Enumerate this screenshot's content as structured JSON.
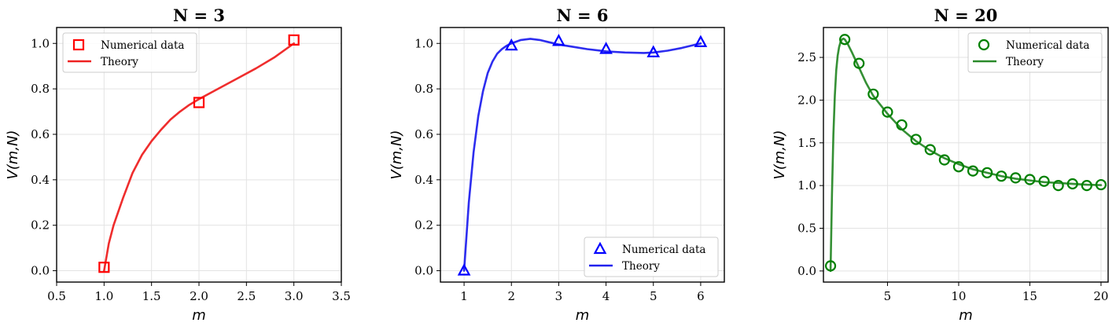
{
  "chart_data": [
    {
      "type": "line",
      "title": "N = 3",
      "xlabel": "m",
      "ylabel": "V(m,N)",
      "xlim": [
        0.5,
        3.5
      ],
      "ylim": [
        -0.05,
        1.07
      ],
      "xticks": [
        "0.5",
        "1.0",
        "1.5",
        "2.0",
        "2.5",
        "3.0",
        "3.5"
      ],
      "yticks": [
        "0.0",
        "0.2",
        "0.4",
        "0.6",
        "0.8",
        "1.0"
      ],
      "grid": true,
      "legend_position": "top-left",
      "color": "#ff0000",
      "theory_color": "#ee2222",
      "marker": "square",
      "series": [
        {
          "name": "Numerical data",
          "kind": "markers",
          "x": [
            1,
            2,
            3
          ],
          "y": [
            0.015,
            0.74,
            1.015
          ]
        },
        {
          "name": "Theory",
          "kind": "line",
          "x": [
            1.0,
            1.05,
            1.1,
            1.2,
            1.3,
            1.4,
            1.5,
            1.6,
            1.7,
            1.8,
            1.9,
            2.0,
            2.2,
            2.4,
            2.6,
            2.8,
            3.0
          ],
          "y": [
            0.0,
            0.12,
            0.2,
            0.32,
            0.43,
            0.51,
            0.57,
            0.62,
            0.665,
            0.7,
            0.73,
            0.755,
            0.8,
            0.845,
            0.89,
            0.94,
            1.0
          ]
        }
      ]
    },
    {
      "type": "line",
      "title": "N = 6",
      "xlabel": "m",
      "ylabel": "V(m,N)",
      "xlim": [
        0.5,
        6.5
      ],
      "ylim": [
        -0.05,
        1.07
      ],
      "xticks": [
        "1",
        "2",
        "3",
        "4",
        "5",
        "6"
      ],
      "yticks": [
        "0.0",
        "0.2",
        "0.4",
        "0.6",
        "0.8",
        "1.0"
      ],
      "grid": true,
      "legend_position": "bottom-right",
      "color": "#0000ff",
      "theory_color": "#2222ee",
      "marker": "triangle",
      "series": [
        {
          "name": "Numerical data",
          "kind": "markers",
          "x": [
            1,
            2,
            3,
            4,
            5,
            6
          ],
          "y": [
            0.0,
            0.99,
            1.01,
            0.975,
            0.96,
            1.005
          ]
        },
        {
          "name": "Theory",
          "kind": "line",
          "x": [
            1.0,
            1.1,
            1.2,
            1.3,
            1.4,
            1.5,
            1.6,
            1.7,
            1.8,
            1.9,
            2.0,
            2.2,
            2.4,
            2.6,
            2.8,
            3.0,
            3.3,
            3.6,
            4.0,
            4.4,
            4.8,
            5.0,
            5.3,
            5.6,
            6.0
          ],
          "y": [
            0.0,
            0.3,
            0.52,
            0.68,
            0.79,
            0.87,
            0.92,
            0.955,
            0.975,
            0.99,
            1.0,
            1.015,
            1.02,
            1.015,
            1.005,
            0.995,
            0.985,
            0.975,
            0.965,
            0.96,
            0.958,
            0.96,
            0.968,
            0.98,
            1.0
          ]
        }
      ]
    },
    {
      "type": "line",
      "title": "N = 20",
      "xlabel": "m",
      "ylabel": "V(m,N)",
      "xlim": [
        0.5,
        20.5
      ],
      "ylim": [
        -0.13,
        2.85
      ],
      "xticks": [
        "5",
        "10",
        "15",
        "20"
      ],
      "yticks": [
        "0.0",
        "0.5",
        "1.0",
        "1.5",
        "2.0",
        "2.5"
      ],
      "grid": true,
      "legend_position": "top-right",
      "color": "#008000",
      "theory_color": "#2a8a2a",
      "marker": "circle",
      "series": [
        {
          "name": "Numerical data",
          "kind": "markers",
          "x": [
            1,
            2,
            3,
            4,
            5,
            6,
            7,
            8,
            9,
            10,
            11,
            12,
            13,
            14,
            15,
            16,
            17,
            18,
            19,
            20
          ],
          "y": [
            0.06,
            2.71,
            2.43,
            2.07,
            1.86,
            1.71,
            1.54,
            1.42,
            1.3,
            1.22,
            1.17,
            1.15,
            1.11,
            1.09,
            1.07,
            1.05,
            1.0,
            1.02,
            1.0,
            1.01
          ]
        },
        {
          "name": "Theory",
          "kind": "line",
          "x": [
            1.0,
            1.1,
            1.2,
            1.3,
            1.4,
            1.5,
            1.6,
            1.7,
            1.8,
            1.9,
            2.0,
            2.2,
            2.5,
            3.0,
            3.5,
            4.0,
            5.0,
            6.0,
            7.0,
            8.0,
            9.0,
            10,
            11,
            12,
            13,
            14,
            15,
            16,
            17,
            18,
            19,
            20
          ],
          "y": [
            0.0,
            0.9,
            1.6,
            2.05,
            2.35,
            2.52,
            2.62,
            2.68,
            2.71,
            2.72,
            2.71,
            2.66,
            2.56,
            2.38,
            2.2,
            2.05,
            1.84,
            1.66,
            1.52,
            1.41,
            1.32,
            1.25,
            1.19,
            1.15,
            1.11,
            1.08,
            1.06,
            1.04,
            1.03,
            1.02,
            1.01,
            1.005
          ]
        }
      ]
    }
  ]
}
